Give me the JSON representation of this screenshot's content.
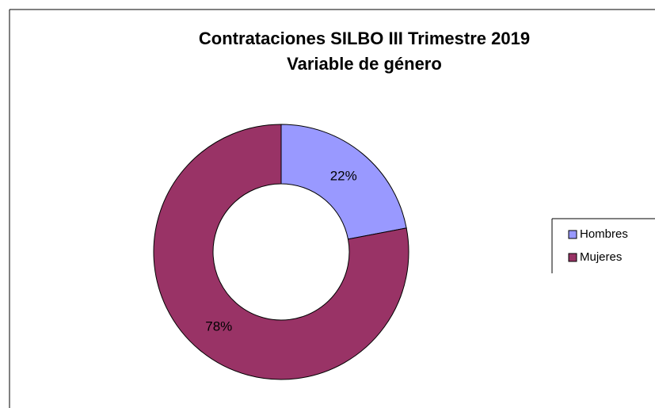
{
  "chart_data": {
    "type": "donut",
    "title": "Contrataciones SILBO III Trimestre 2019",
    "subtitle": "Variable de género",
    "categories": [
      "Hombres",
      "Mujeres"
    ],
    "values": [
      22,
      78
    ],
    "value_labels": [
      "22%",
      "78%"
    ],
    "colors": [
      "#9999ff",
      "#993366"
    ],
    "legend": "right"
  }
}
